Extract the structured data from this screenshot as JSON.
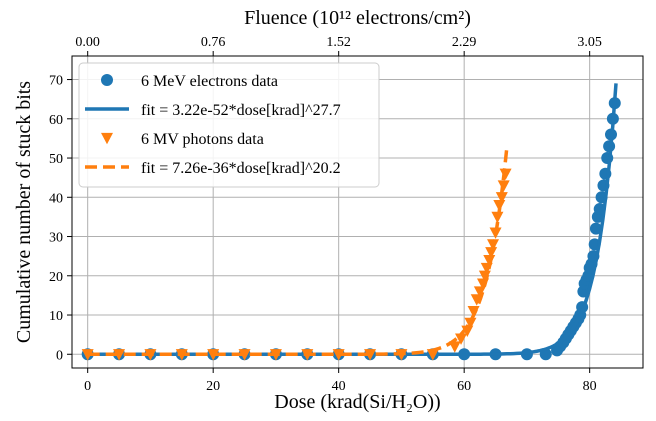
{
  "chart_data": {
    "type": "scatter",
    "title": "",
    "xlabel": "Dose (krad(Si/H₂O))",
    "ylabel": "Cumulative number of stuck bits",
    "top_axis_label": "Fluence (10¹² electrons/cm²)",
    "xlim": [
      -2.5,
      88.5
    ],
    "ylim": [
      -3.5,
      76
    ],
    "x_ticks": [
      0,
      20,
      40,
      60,
      80
    ],
    "y_ticks": [
      0,
      10,
      20,
      30,
      40,
      50,
      60,
      70
    ],
    "top_ticks": [
      {
        "dose": 0,
        "label": "0.00"
      },
      {
        "dose": 20,
        "label": "0.76"
      },
      {
        "dose": 40,
        "label": "1.52"
      },
      {
        "dose": 60,
        "label": "2.29"
      },
      {
        "dose": 80,
        "label": "3.05"
      }
    ],
    "grid": true,
    "legend_position": "top-left",
    "series": [
      {
        "name": "6 MeV electrons data",
        "kind": "points",
        "marker": "circle",
        "color": "#1f77b4",
        "x": [
          0,
          5,
          10,
          15,
          20,
          25,
          30,
          35,
          40,
          45,
          50,
          55,
          60,
          65,
          70,
          73,
          74.8,
          75.3,
          75.8,
          76.2,
          76.6,
          77.0,
          77.4,
          77.8,
          78.2,
          78.5,
          78.8,
          79.0,
          79.2,
          79.5,
          79.8,
          80.0,
          80.3,
          80.6,
          80.8,
          81.0,
          81.3,
          81.6,
          81.9,
          82.2,
          82.5,
          82.8,
          83.1,
          83.4,
          83.7,
          84.0
        ],
        "y": [
          0,
          0,
          0,
          0,
          0,
          0,
          0,
          0,
          0,
          0,
          0,
          0,
          0,
          0,
          0,
          0,
          1,
          2,
          3,
          4,
          5,
          6,
          7,
          8,
          9,
          10,
          12,
          16,
          18,
          19,
          20,
          22,
          23,
          25,
          28,
          32,
          35,
          37,
          40,
          43,
          46,
          50,
          53,
          56,
          60,
          64
        ]
      },
      {
        "name": "fit = 3.22e-52*dose[krad]^27.7",
        "kind": "fit",
        "style": "solid",
        "color": "#1f77b4",
        "coef": 3.22e-52,
        "exponent": 27.7,
        "x_range": [
          0,
          84.2
        ]
      },
      {
        "name": "6 MV photons data",
        "kind": "points",
        "marker": "triangle-down",
        "color": "#ff7f0e",
        "x": [
          0,
          5,
          10,
          15,
          20,
          25,
          30,
          35,
          40,
          45,
          50,
          55,
          58.5,
          59.5,
          60.5,
          61.0,
          61.5,
          62.0,
          62.5,
          63.0,
          63.3,
          63.6,
          64.0,
          64.3,
          64.6,
          65.0,
          65.3,
          65.6,
          66.0,
          66.3,
          66.6
        ],
        "y": [
          0,
          0,
          0,
          0,
          0,
          0,
          0,
          0,
          0,
          0,
          0,
          0,
          2,
          4,
          6,
          8,
          11,
          14,
          16,
          18,
          20,
          22,
          24,
          26,
          28,
          31,
          35,
          38,
          40,
          43,
          46
        ]
      },
      {
        "name": "fit = 7.26e-36*dose[krad]^20.2",
        "kind": "fit",
        "style": "dashed",
        "color": "#ff7f0e",
        "coef": 7.26e-36,
        "exponent": 20.2,
        "x_range": [
          0,
          66.8
        ]
      }
    ]
  }
}
